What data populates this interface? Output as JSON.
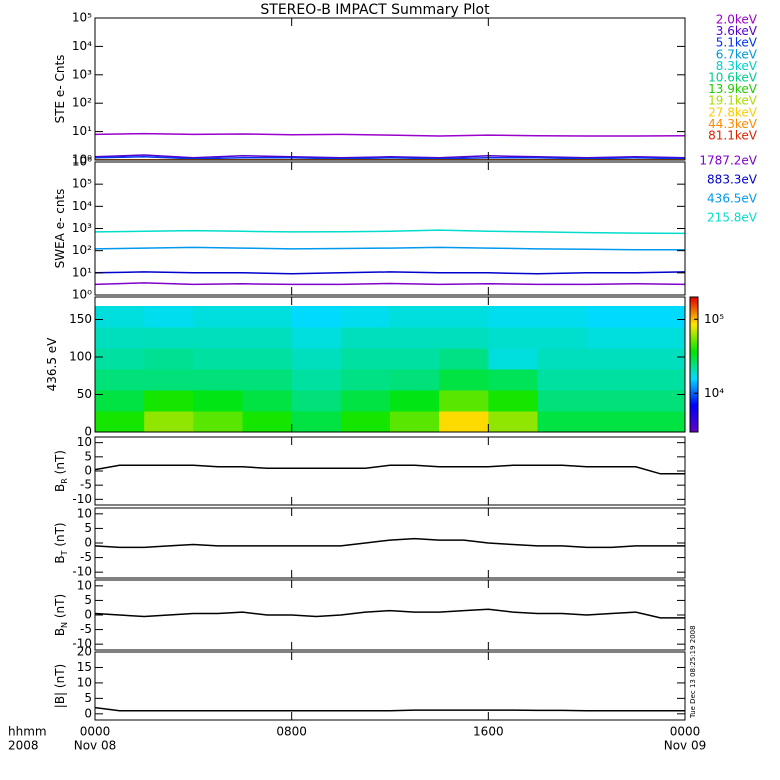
{
  "title": "STEREO-B IMPACT Summary Plot",
  "stamp": "Tue Dec 13 08:25:19 2008",
  "xaxis": {
    "xlim": [
      0,
      24
    ],
    "xticks": [
      {
        "value": 0,
        "label": "0000"
      },
      {
        "value": 8,
        "label": "0800"
      },
      {
        "value": 16,
        "label": "1600"
      },
      {
        "value": 24,
        "label": "0000"
      }
    ],
    "date_labels": [
      {
        "value": 0,
        "label": "Nov 08"
      },
      {
        "value": 24,
        "label": "Nov 09"
      }
    ],
    "row_labels": [
      "hhmm",
      "2008"
    ]
  },
  "chart_data": [
    {
      "type": "line",
      "ylabel": [
        "STE e- Cnts"
      ],
      "log": true,
      "ylim": [
        1,
        100000
      ],
      "yticks": [
        {
          "value": 1,
          "label": "10⁰"
        },
        {
          "value": 10,
          "label": "10¹"
        },
        {
          "value": 100,
          "label": "10²"
        },
        {
          "value": 1000,
          "label": "10³"
        },
        {
          "value": 10000,
          "label": "10⁴"
        },
        {
          "value": 100000,
          "label": "10⁵"
        }
      ],
      "x": [
        0,
        2,
        4,
        6,
        8,
        10,
        12,
        14,
        16,
        18,
        20,
        22,
        24
      ],
      "series": [
        {
          "name": "2.0keV",
          "color": "#9900cc",
          "values": [
            8,
            8.5,
            8,
            8.2,
            7.8,
            8,
            7.5,
            7,
            7.5,
            7.2,
            7,
            7,
            7.2
          ]
        },
        {
          "name": "3.6keV",
          "color": "#5500cc",
          "values": [
            1.3,
            1.5,
            1.2,
            1.4,
            1.3,
            1.2,
            1.3,
            1.2,
            1.4,
            1.3,
            1.2,
            1.3,
            1.2
          ]
        },
        {
          "name": "5.1keV",
          "color": "#0033ee",
          "values": [
            1.2,
            1.3,
            1.1,
            1.2,
            1.2,
            1.1,
            1.2,
            1.1,
            1.2,
            1.2,
            1.1,
            1.2,
            1.1
          ]
        },
        {
          "name": "6.7keV",
          "color": "#0099dd",
          "values": [
            1,
            1,
            1,
            1,
            1,
            1,
            1,
            1,
            1,
            1,
            1,
            1,
            1
          ]
        },
        {
          "name": "8.3keV",
          "color": "#00cccc",
          "values": [
            1,
            1,
            1,
            1,
            1,
            1,
            1,
            1,
            1,
            1,
            1,
            1,
            1
          ]
        },
        {
          "name": "10.6keV",
          "color": "#00cc88",
          "values": [
            1,
            1,
            1,
            1,
            1,
            1,
            1,
            1,
            1,
            1,
            1,
            1,
            1
          ]
        },
        {
          "name": "13.9keV",
          "color": "#22cc00",
          "values": [
            1,
            1,
            1,
            1,
            1,
            1,
            1,
            1,
            1,
            1,
            1,
            1,
            1
          ]
        },
        {
          "name": "19.1keV",
          "color": "#aadd00",
          "values": [
            1,
            1,
            1,
            1,
            1,
            1,
            1,
            1,
            1,
            1,
            1,
            1,
            1
          ]
        },
        {
          "name": "27.8keV",
          "color": "#ffcc00",
          "values": [
            1,
            1,
            1,
            1,
            1,
            1,
            1,
            1,
            1,
            1,
            1,
            1,
            1
          ]
        },
        {
          "name": "44.3keV",
          "color": "#ff8800",
          "values": [
            1,
            1,
            1,
            1,
            1,
            1,
            1,
            1,
            1,
            1,
            1,
            1,
            1
          ]
        },
        {
          "name": "81.1keV",
          "color": "#dd2200",
          "values": [
            1,
            1,
            1,
            1,
            1,
            1,
            1,
            1,
            1,
            1,
            1,
            1,
            1
          ]
        }
      ]
    },
    {
      "type": "line",
      "ylabel": [
        "SWEA e- cnts"
      ],
      "log": true,
      "ylim": [
        1,
        1000000
      ],
      "yticks": [
        {
          "value": 1,
          "label": "10⁰"
        },
        {
          "value": 10,
          "label": "10¹"
        },
        {
          "value": 100,
          "label": "10²"
        },
        {
          "value": 1000,
          "label": "10³"
        },
        {
          "value": 10000,
          "label": "10⁴"
        },
        {
          "value": 100000,
          "label": "10⁵"
        },
        {
          "value": 1000000,
          "label": "10⁶"
        }
      ],
      "x": [
        0,
        2,
        4,
        6,
        8,
        10,
        12,
        14,
        16,
        18,
        20,
        22,
        24
      ],
      "series": [
        {
          "name": "1787.2eV",
          "color": "#8000cc",
          "values": [
            3,
            3.5,
            3,
            3.2,
            3,
            3,
            3.3,
            3,
            3.2,
            3,
            3,
            3.2,
            3
          ]
        },
        {
          "name": "883.3eV",
          "color": "#0000cc",
          "values": [
            10,
            11,
            10,
            10,
            9,
            10,
            11,
            10,
            10,
            9,
            10,
            10,
            11
          ]
        },
        {
          "name": "436.5eV",
          "color": "#0099ee",
          "values": [
            120,
            130,
            140,
            130,
            120,
            125,
            130,
            140,
            130,
            120,
            115,
            110,
            110
          ]
        },
        {
          "name": "215.8eV",
          "color": "#00ddcc",
          "values": [
            700,
            750,
            800,
            750,
            700,
            720,
            750,
            850,
            750,
            700,
            650,
            620,
            600
          ]
        }
      ]
    },
    {
      "type": "heatmap",
      "ylabel": [
        "436.5 eV"
      ],
      "log": false,
      "ylim": [
        0,
        180
      ],
      "yticks": [
        0,
        50,
        100,
        150
      ],
      "x_edges": [
        0,
        2,
        4,
        6,
        8,
        10,
        12,
        14,
        16,
        18,
        20,
        22,
        24
      ],
      "y_edges": [
        0,
        28,
        56,
        84,
        112,
        140,
        168
      ],
      "values": [
        [
          40000,
          60000,
          50000,
          40000,
          30000,
          40000,
          50000,
          90000,
          60000,
          30000,
          30000,
          30000
        ],
        [
          30000,
          40000,
          35000,
          30000,
          25000,
          30000,
          35000,
          50000,
          40000,
          25000,
          25000,
          25000
        ],
        [
          25000,
          25000,
          25000,
          25000,
          22000,
          24000,
          25000,
          30000,
          28000,
          22000,
          22000,
          22000
        ],
        [
          22000,
          23000,
          22000,
          22000,
          20000,
          22000,
          22000,
          24000,
          18000,
          20000,
          20000,
          20000
        ],
        [
          20000,
          20000,
          20000,
          20000,
          18000,
          20000,
          20000,
          20000,
          19000,
          19000,
          18000,
          18000
        ],
        [
          18000,
          17000,
          18000,
          18000,
          16000,
          17000,
          18000,
          18000,
          17000,
          17000,
          16000,
          16000
        ]
      ],
      "zlim": [
        3000,
        200000
      ],
      "zticks": [
        {
          "value": 10000,
          "label": "10⁴"
        },
        {
          "value": 100000,
          "label": "10⁵"
        }
      ]
    },
    {
      "type": "line",
      "ylabel": [
        "B",
        "R",
        " (nT)"
      ],
      "log": false,
      "ylim": [
        -12,
        12
      ],
      "yticks": [
        -10,
        -5,
        0,
        5,
        10
      ],
      "x": [
        0,
        1,
        2,
        3,
        4,
        5,
        6,
        7,
        8,
        9,
        10,
        11,
        12,
        13,
        14,
        15,
        16,
        17,
        18,
        19,
        20,
        21,
        22,
        23,
        24
      ],
      "series": [
        {
          "name": "BR",
          "color": "#000000",
          "values": [
            0.5,
            2,
            2,
            2,
            2,
            1.5,
            1.5,
            1,
            1,
            1,
            1,
            1,
            2,
            2,
            1.5,
            1.5,
            1.5,
            2,
            2,
            2,
            1.5,
            1.5,
            1.5,
            -1,
            -1
          ]
        }
      ]
    },
    {
      "type": "line",
      "ylabel": [
        "B",
        "T",
        " (nT)"
      ],
      "log": false,
      "ylim": [
        -12,
        12
      ],
      "yticks": [
        -10,
        -5,
        0,
        5,
        10
      ],
      "x": [
        0,
        1,
        2,
        3,
        4,
        5,
        6,
        7,
        8,
        9,
        10,
        11,
        12,
        13,
        14,
        15,
        16,
        17,
        18,
        19,
        20,
        21,
        22,
        23,
        24
      ],
      "series": [
        {
          "name": "BT",
          "color": "#000000",
          "values": [
            -1,
            -1.5,
            -1.5,
            -1,
            -0.5,
            -1,
            -1,
            -1,
            -1,
            -1,
            -1,
            0,
            1,
            1.5,
            1,
            1,
            0,
            -0.5,
            -1,
            -1,
            -1.5,
            -1.5,
            -1,
            -1,
            -1
          ]
        }
      ]
    },
    {
      "type": "line",
      "ylabel": [
        "B",
        "N",
        " (nT)"
      ],
      "log": false,
      "ylim": [
        -12,
        12
      ],
      "yticks": [
        -10,
        -5,
        0,
        5,
        10
      ],
      "x": [
        0,
        1,
        2,
        3,
        4,
        5,
        6,
        7,
        8,
        9,
        10,
        11,
        12,
        13,
        14,
        15,
        16,
        17,
        18,
        19,
        20,
        21,
        22,
        23,
        24
      ],
      "series": [
        {
          "name": "BN",
          "color": "#000000",
          "values": [
            0.5,
            0,
            -0.5,
            0,
            0.5,
            0.5,
            1,
            0,
            0,
            -0.5,
            0,
            1,
            1.5,
            1,
            1,
            1.5,
            2,
            1,
            0.5,
            0.5,
            0,
            0.5,
            1,
            -1,
            -1
          ]
        }
      ]
    },
    {
      "type": "line",
      "ylabel": [
        "|B| (nT)"
      ],
      "log": false,
      "ylim": [
        -2,
        20
      ],
      "yticks": [
        0,
        5,
        10,
        15,
        20
      ],
      "x": [
        0,
        1,
        2,
        3,
        4,
        5,
        6,
        7,
        8,
        9,
        10,
        11,
        12,
        13,
        14,
        15,
        16,
        17,
        18,
        19,
        20,
        21,
        22,
        23,
        24
      ],
      "series": [
        {
          "name": "|B|",
          "color": "#000000",
          "values": [
            2,
            1,
            1,
            1,
            1,
            1,
            1,
            1,
            1,
            1,
            1,
            1,
            1,
            1.2,
            1.2,
            1.2,
            1.2,
            1.2,
            1.1,
            1.1,
            1,
            1,
            1,
            1,
            1
          ]
        }
      ]
    }
  ]
}
